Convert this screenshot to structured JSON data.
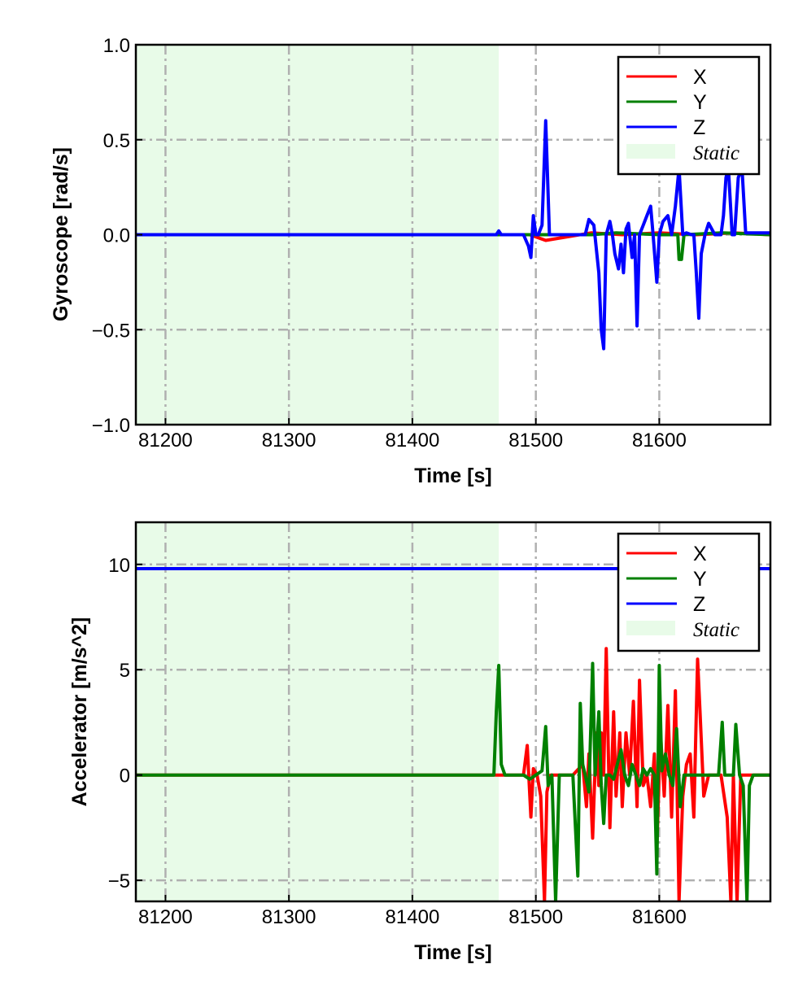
{
  "chart_data": [
    {
      "type": "line",
      "xlabel": "Time [s]",
      "ylabel": "Gyroscope [rad/s]",
      "xlim": [
        81176,
        81690
      ],
      "ylim": [
        -1.0,
        1.0
      ],
      "xticks": [
        81200,
        81300,
        81400,
        81500,
        81600
      ],
      "xtick_labels": [
        "81200",
        "81300",
        "81400",
        "81500",
        "81600"
      ],
      "yticks": [
        -1.0,
        -0.5,
        0.0,
        0.5,
        1.0
      ],
      "ytick_labels": [
        "−1.0",
        "−0.5",
        "0.0",
        "0.5",
        "1.0"
      ],
      "grid": true,
      "legend_position": "top-right",
      "static_region": {
        "label": "Static",
        "x": [
          81176,
          81470
        ],
        "color": "#e8fbe8"
      },
      "series": [
        {
          "name": "X",
          "color": "#ff0000",
          "x": [
            81176,
            81470,
            81495,
            81508,
            81545,
            81570,
            81600,
            81630,
            81660,
            81690
          ],
          "y": [
            0.0,
            0.0,
            0.0,
            -0.03,
            0.01,
            0.0,
            0.01,
            0.0,
            0.01,
            0.0
          ]
        },
        {
          "name": "Y",
          "color": "#008000",
          "x": [
            81176,
            81470,
            81545,
            81565,
            81600,
            81615,
            81616,
            81618,
            81620,
            81650,
            81690
          ],
          "y": [
            0.0,
            0.0,
            0.0,
            0.01,
            0.0,
            0.0,
            -0.13,
            -0.13,
            0.0,
            0.01,
            0.0
          ]
        },
        {
          "name": "Z",
          "color": "#0000ff",
          "x": [
            81176,
            81468,
            81470,
            81472,
            81490,
            81494,
            81496,
            81498,
            81500,
            81502,
            81505,
            81508,
            81511,
            81514,
            81540,
            81543,
            81547,
            81551,
            81553,
            81555,
            81557,
            81560,
            81562,
            81564,
            81567,
            81569,
            81571,
            81573,
            81575,
            81578,
            81580,
            81582,
            81584,
            81587,
            81590,
            81593,
            81595,
            81598,
            81600,
            81603,
            81607,
            81610,
            81613,
            81616,
            81619,
            81622,
            81626,
            81628,
            81630,
            81632,
            81634,
            81637,
            81640,
            81645,
            81650,
            81652,
            81654,
            81656,
            81659,
            81661,
            81664,
            81667,
            81670,
            81690
          ],
          "y": [
            0.0,
            0.0,
            0.02,
            0.0,
            0.0,
            -0.06,
            -0.12,
            0.1,
            0.0,
            0.0,
            0.05,
            0.6,
            0.0,
            0.0,
            0.0,
            0.08,
            0.05,
            -0.2,
            -0.5,
            -0.6,
            0.0,
            0.07,
            0.0,
            -0.1,
            -0.18,
            -0.05,
            -0.2,
            0.03,
            0.06,
            -0.12,
            0.0,
            -0.48,
            0.0,
            0.05,
            0.1,
            0.15,
            0.0,
            -0.25,
            0.0,
            0.07,
            0.1,
            0.0,
            0.15,
            0.35,
            0.0,
            0.01,
            0.0,
            0.0,
            -0.2,
            -0.44,
            -0.1,
            0.0,
            0.06,
            0.0,
            0.0,
            0.1,
            0.3,
            0.35,
            0.0,
            0.0,
            0.3,
            0.35,
            0.01,
            0.01
          ]
        }
      ]
    },
    {
      "type": "line",
      "xlabel": "Time [s]",
      "ylabel": "Accelerator [m/s^2]",
      "xlim": [
        81176,
        81690
      ],
      "ylim": [
        -6.0,
        12.0
      ],
      "xticks": [
        81200,
        81300,
        81400,
        81500,
        81600
      ],
      "xtick_labels": [
        "81200",
        "81300",
        "81400",
        "81500",
        "81600"
      ],
      "yticks": [
        -5,
        0,
        5,
        10
      ],
      "ytick_labels": [
        "−5",
        "0",
        "5",
        "10"
      ],
      "grid": true,
      "legend_position": "top-right",
      "static_region": {
        "label": "Static",
        "x": [
          81176,
          81470
        ],
        "color": "#e8fbe8"
      },
      "series": [
        {
          "name": "X",
          "color": "#ff0000",
          "x": [
            81176,
            81490,
            81493,
            81496,
            81498,
            81501,
            81504,
            81507,
            81509,
            81512,
            81530,
            81538,
            81541,
            81543,
            81546,
            81549,
            81551,
            81553,
            81555,
            81557,
            81560,
            81563,
            81565,
            81568,
            81570,
            81573,
            81576,
            81579,
            81582,
            81584,
            81587,
            81590,
            81593,
            81596,
            81598,
            81601,
            81604,
            81607,
            81610,
            81613,
            81616,
            81619,
            81622,
            81625,
            81628,
            81631,
            81633,
            81636,
            81640,
            81650,
            81655,
            81658,
            81660,
            81663,
            81666,
            81670,
            81690
          ],
          "y": [
            0.0,
            0.0,
            1.4,
            -2.0,
            0.3,
            0.0,
            -1.0,
            -6.0,
            -0.8,
            0.0,
            0.0,
            0.5,
            -1.5,
            1.0,
            -3.0,
            2.0,
            -0.5,
            2.0,
            0.0,
            6.0,
            -2.5,
            3.0,
            -1.0,
            2.0,
            -1.5,
            2.0,
            0.0,
            3.5,
            -1.5,
            4.5,
            -0.5,
            0.0,
            -1.5,
            1.0,
            -3.5,
            2.0,
            -1.0,
            3.3,
            -2.0,
            4.0,
            -6.0,
            -1.0,
            0.5,
            1.0,
            -2.0,
            5.5,
            3.0,
            -1.0,
            0.0,
            0.0,
            -2.0,
            -6.0,
            0.0,
            -6.0,
            0.0,
            0.0,
            0.0
          ]
        },
        {
          "name": "Y",
          "color": "#008000",
          "x": [
            81176,
            81466,
            81468,
            81470,
            81472,
            81475,
            81490,
            81495,
            81500,
            81505,
            81508,
            81510,
            81513,
            81516,
            81519,
            81522,
            81525,
            81530,
            81534,
            81536,
            81538,
            81540,
            81543,
            81546,
            81548,
            81551,
            81553,
            81555,
            81557,
            81560,
            81563,
            81566,
            81569,
            81572,
            81575,
            81578,
            81581,
            81584,
            81587,
            81590,
            81593,
            81596,
            81598,
            81600,
            81602,
            81605,
            81608,
            81611,
            81614,
            81617,
            81620,
            81623,
            81626,
            81630,
            81640,
            81648,
            81651,
            81653,
            81655,
            81657,
            81660,
            81662,
            81665,
            81668,
            81671,
            81673,
            81676,
            81690
          ],
          "y": [
            0.0,
            0.0,
            3.0,
            5.2,
            0.5,
            0.0,
            0.0,
            -0.2,
            0.0,
            0.2,
            2.3,
            -0.5,
            0.0,
            -6.0,
            0.0,
            0.0,
            0.0,
            0.0,
            -4.8,
            3.4,
            0.5,
            0.0,
            -0.8,
            5.3,
            0.0,
            3.0,
            -0.5,
            -2.3,
            0.0,
            0.0,
            -0.2,
            0.5,
            1.2,
            0.0,
            -0.5,
            0.5,
            0.0,
            -0.5,
            0.3,
            0.0,
            0.3,
            0.0,
            -4.7,
            5.2,
            0.2,
            1.0,
            0.0,
            -0.5,
            2.2,
            -1.5,
            0.0,
            0.0,
            0.0,
            0.0,
            0.0,
            0.0,
            2.5,
            0.0,
            0.0,
            0.0,
            0.0,
            2.4,
            0.0,
            -0.5,
            -6.0,
            -0.5,
            0.0,
            0.0
          ]
        },
        {
          "name": "Z",
          "color": "#0000ff",
          "x": [
            81176,
            81500,
            81550,
            81600,
            81650,
            81690
          ],
          "y": [
            9.8,
            9.8,
            9.8,
            9.8,
            9.8,
            9.8
          ]
        }
      ]
    }
  ]
}
